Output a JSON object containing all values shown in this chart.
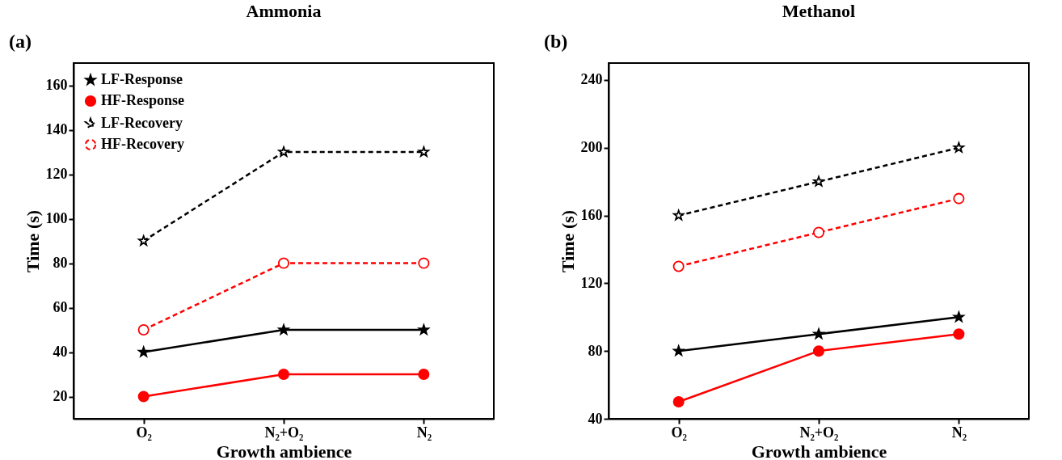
{
  "chart_data": [
    {
      "type": "line",
      "title": "Ammonia",
      "xlabel": "Growth ambience",
      "ylabel": "Time (s)",
      "annotations": [
        "(a)"
      ],
      "categories": [
        "O₂",
        "N₂+O₂",
        "N₂"
      ],
      "ylim": [
        10,
        170
      ],
      "yticks": [
        20,
        40,
        60,
        80,
        100,
        120,
        140,
        160
      ],
      "legend": "top left",
      "grid": false,
      "series": [
        {
          "name": "LF-Response",
          "color": "#000000",
          "marker": "star",
          "line_style": "solid",
          "values": [
            40,
            50,
            50
          ]
        },
        {
          "name": "HF-Response",
          "color": "#ff0000",
          "marker": "circle",
          "line_style": "solid",
          "values": [
            20,
            30,
            30
          ]
        },
        {
          "name": "LF-Recovery",
          "color": "#000000",
          "marker": "star",
          "line_style": "dashed",
          "values": [
            90,
            130,
            130
          ]
        },
        {
          "name": "HF-Recovery",
          "color": "#ff0000",
          "marker": "circle",
          "line_style": "dashed",
          "values": [
            50,
            80,
            80
          ]
        }
      ]
    },
    {
      "type": "line",
      "title": "Methanol",
      "xlabel": "Growth ambience",
      "ylabel": "Time (s)",
      "annotations": [
        "(b)"
      ],
      "categories": [
        "O₂",
        "N₂+O₂",
        "N₂"
      ],
      "ylim": [
        40,
        250
      ],
      "yticks": [
        40,
        80,
        120,
        160,
        200,
        240
      ],
      "legend": "top left",
      "grid": false,
      "series": [
        {
          "name": "LF-Response",
          "color": "#000000",
          "marker": "star",
          "line_style": "solid",
          "values": [
            80,
            90,
            100
          ]
        },
        {
          "name": "HF-Response",
          "color": "#ff0000",
          "marker": "circle",
          "line_style": "solid",
          "values": [
            50,
            80,
            90
          ]
        },
        {
          "name": "LF-Recovery",
          "color": "#000000",
          "marker": "star",
          "line_style": "dashed",
          "values": [
            160,
            180,
            200
          ]
        },
        {
          "name": "HF-Recovery",
          "color": "#ff0000",
          "marker": "circle",
          "line_style": "dashed",
          "values": [
            130,
            150,
            170
          ]
        }
      ]
    }
  ]
}
